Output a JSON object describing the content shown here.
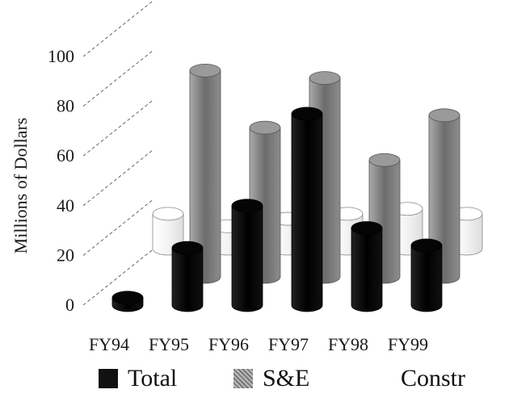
{
  "chart_data": {
    "type": "bar",
    "style": "3d-cylinder",
    "categories": [
      "FY94",
      "FY95",
      "FY96",
      "FY97",
      "FY98",
      "FY99"
    ],
    "series": [
      {
        "name": "Total",
        "values": [
          3,
          23,
          40,
          77,
          31,
          24
        ],
        "color": "#111111"
      },
      {
        "name": "S&E",
        "values": [
          0,
          83,
          60,
          80,
          47,
          65
        ],
        "color": "#8a8a8a"
      },
      {
        "name": "Constr",
        "values": [
          14,
          9,
          12,
          14,
          16,
          14
        ],
        "color": "#f6f6f6"
      }
    ],
    "ylabel": "Millions of Dollars",
    "ylim": [
      0,
      110
    ],
    "yticks": [
      "0",
      "20",
      "40",
      "60",
      "80",
      "100"
    ],
    "grid": true,
    "legend": "bottom"
  }
}
